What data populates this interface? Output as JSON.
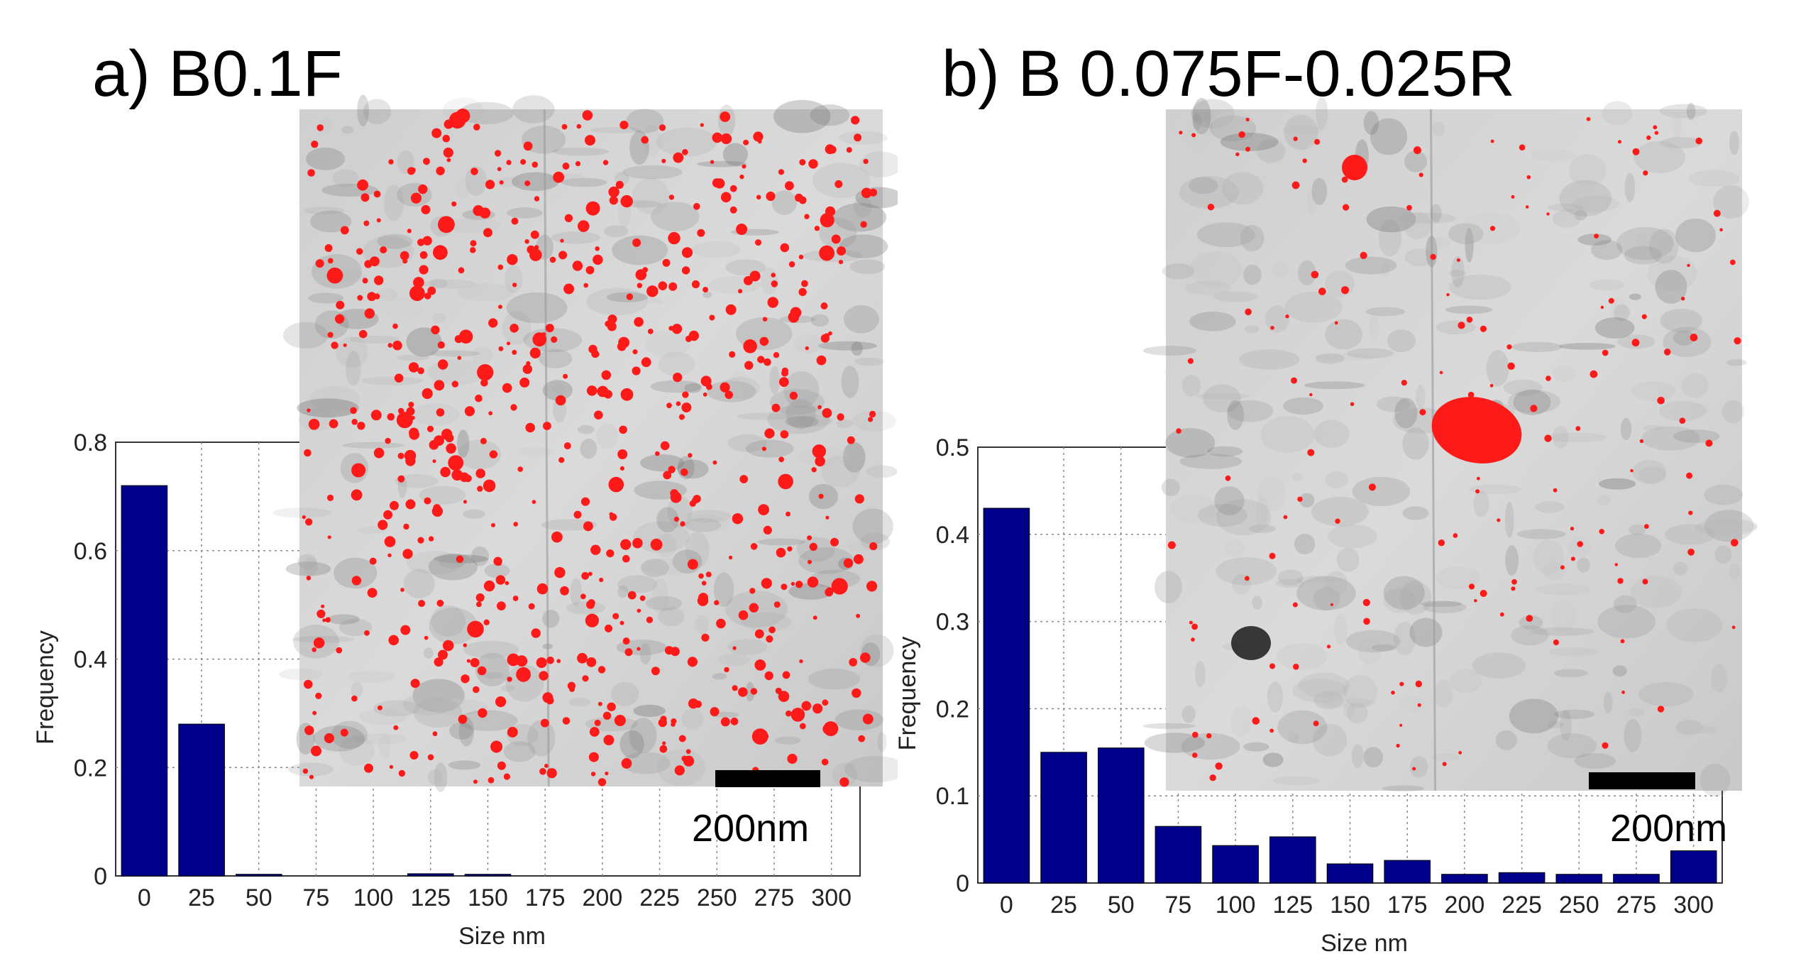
{
  "chart_data": [
    {
      "type": "bar",
      "panel_title": "a) B0.1F",
      "xlabel": "Size nm",
      "ylabel": "Frequency",
      "categories": [
        "0",
        "25",
        "50",
        "75",
        "100",
        "125",
        "150",
        "175",
        "200",
        "225",
        "250",
        "275",
        "300"
      ],
      "values": [
        0.72,
        0.28,
        0.003,
        0.0,
        0.0,
        0.004,
        0.003,
        0.0,
        0.0,
        0.0,
        0.0,
        0.0,
        0.0
      ],
      "yticks": [
        "0",
        "0.2",
        "0.4",
        "0.6",
        "0.8"
      ],
      "ylim": [
        0,
        0.8
      ],
      "grid": true,
      "bar_color": "#00008b",
      "inset_image": {
        "type": "TEM micrograph",
        "scale_bar_label": "200nm",
        "particle_marker_color": "#ff1a1a"
      }
    },
    {
      "type": "bar",
      "panel_title": "b) B 0.075F-0.025R",
      "xlabel": "Size nm",
      "ylabel": "Frequency",
      "categories": [
        "0",
        "25",
        "50",
        "75",
        "100",
        "125",
        "150",
        "175",
        "200",
        "225",
        "250",
        "275",
        "300"
      ],
      "values": [
        0.43,
        0.15,
        0.155,
        0.065,
        0.043,
        0.053,
        0.022,
        0.026,
        0.01,
        0.012,
        0.01,
        0.01,
        0.037
      ],
      "yticks": [
        "0",
        "0.1",
        "0.2",
        "0.3",
        "0.4",
        "0.5"
      ],
      "ylim": [
        0,
        0.5
      ],
      "grid": true,
      "bar_color": "#00008b",
      "inset_image": {
        "type": "TEM micrograph",
        "scale_bar_label": "200nm",
        "particle_marker_color": "#ff1a1a"
      }
    }
  ]
}
